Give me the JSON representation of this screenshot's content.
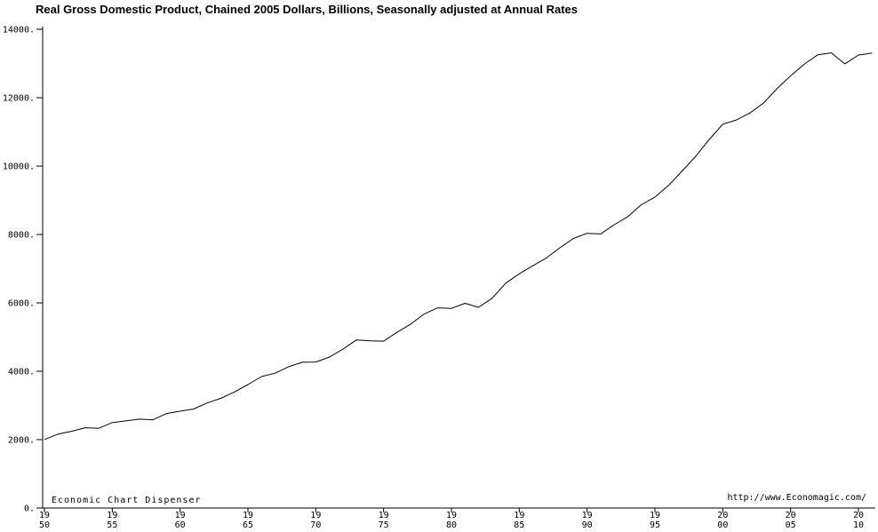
{
  "page": {
    "title": "Real Gross Domestic Product, Chained 2005 Dollars, Billions, Seasonally adjusted at Annual Rates",
    "watermark_left": "Economic Chart Dispenser",
    "watermark_right": "http://www.Economagic.com/"
  },
  "chart_data": {
    "type": "line",
    "title": "Real Gross Domestic Product, Chained 2005 Dollars, Billions, Seasonally adjusted at Annual Rates",
    "xlabel": "",
    "ylabel": "",
    "xlim": [
      1950,
      2011.5
    ],
    "ylim": [
      0,
      14000
    ],
    "grid": false,
    "legend": "none",
    "line_color": "#000000",
    "background_color": "#ffffff",
    "y_ticks": [
      {
        "value": 14000,
        "label": "14000."
      },
      {
        "value": 12000,
        "label": "12000."
      },
      {
        "value": 10000,
        "label": "10000."
      },
      {
        "value": 8000,
        "label": "8000."
      },
      {
        "value": 6000,
        "label": "6000."
      },
      {
        "value": 4000,
        "label": "4000."
      },
      {
        "value": 2000,
        "label": "2000."
      },
      {
        "value": 0,
        "label": "0."
      }
    ],
    "x_ticks": [
      {
        "value": 1950,
        "label_top": "19",
        "label_bottom": "50"
      },
      {
        "value": 1955,
        "label_top": "19",
        "label_bottom": "55"
      },
      {
        "value": 1960,
        "label_top": "19",
        "label_bottom": "60"
      },
      {
        "value": 1965,
        "label_top": "19",
        "label_bottom": "65"
      },
      {
        "value": 1970,
        "label_top": "19",
        "label_bottom": "70"
      },
      {
        "value": 1975,
        "label_top": "19",
        "label_bottom": "75"
      },
      {
        "value": 1980,
        "label_top": "19",
        "label_bottom": "80"
      },
      {
        "value": 1985,
        "label_top": "19",
        "label_bottom": "85"
      },
      {
        "value": 1990,
        "label_top": "19",
        "label_bottom": "90"
      },
      {
        "value": 1995,
        "label_top": "19",
        "label_bottom": "95"
      },
      {
        "value": 2000,
        "label_top": "20",
        "label_bottom": "00"
      },
      {
        "value": 2005,
        "label_top": "20",
        "label_bottom": "05"
      },
      {
        "value": 2010,
        "label_top": "20",
        "label_bottom": "10"
      }
    ],
    "series": [
      {
        "name": "Real GDP (chained 2005 dollars, billions)",
        "x": [
          1950,
          1951,
          1952,
          1953,
          1954,
          1955,
          1956,
          1957,
          1958,
          1959,
          1960,
          1961,
          1962,
          1963,
          1964,
          1965,
          1966,
          1967,
          1968,
          1969,
          1970,
          1971,
          1972,
          1973,
          1974,
          1975,
          1976,
          1977,
          1978,
          1979,
          1980,
          1981,
          1982,
          1983,
          1984,
          1985,
          1986,
          1987,
          1988,
          1989,
          1990,
          1991,
          1992,
          1993,
          1994,
          1995,
          1996,
          1997,
          1998,
          1999,
          2000,
          2001,
          2002,
          2003,
          2004,
          2005,
          2006,
          2007,
          2008,
          2009,
          2010,
          2011
        ],
        "values": [
          2006,
          2161,
          2244,
          2347,
          2332,
          2500,
          2549,
          2601,
          2578,
          2763,
          2831,
          2897,
          3072,
          3207,
          3392,
          3610,
          3845,
          3943,
          4133,
          4262,
          4270,
          4413,
          4648,
          4917,
          4890,
          4880,
          5141,
          5378,
          5678,
          5855,
          5839,
          5987,
          5871,
          6136,
          6577,
          6849,
          7087,
          7313,
          7614,
          7886,
          8034,
          8015,
          8287,
          8523,
          8871,
          9094,
          9434,
          9854,
          10284,
          10780,
          11226,
          11347,
          11553,
          11841,
          12264,
          12638,
          12976,
          13254,
          13312,
          12990,
          13248,
          13305
        ]
      }
    ]
  }
}
